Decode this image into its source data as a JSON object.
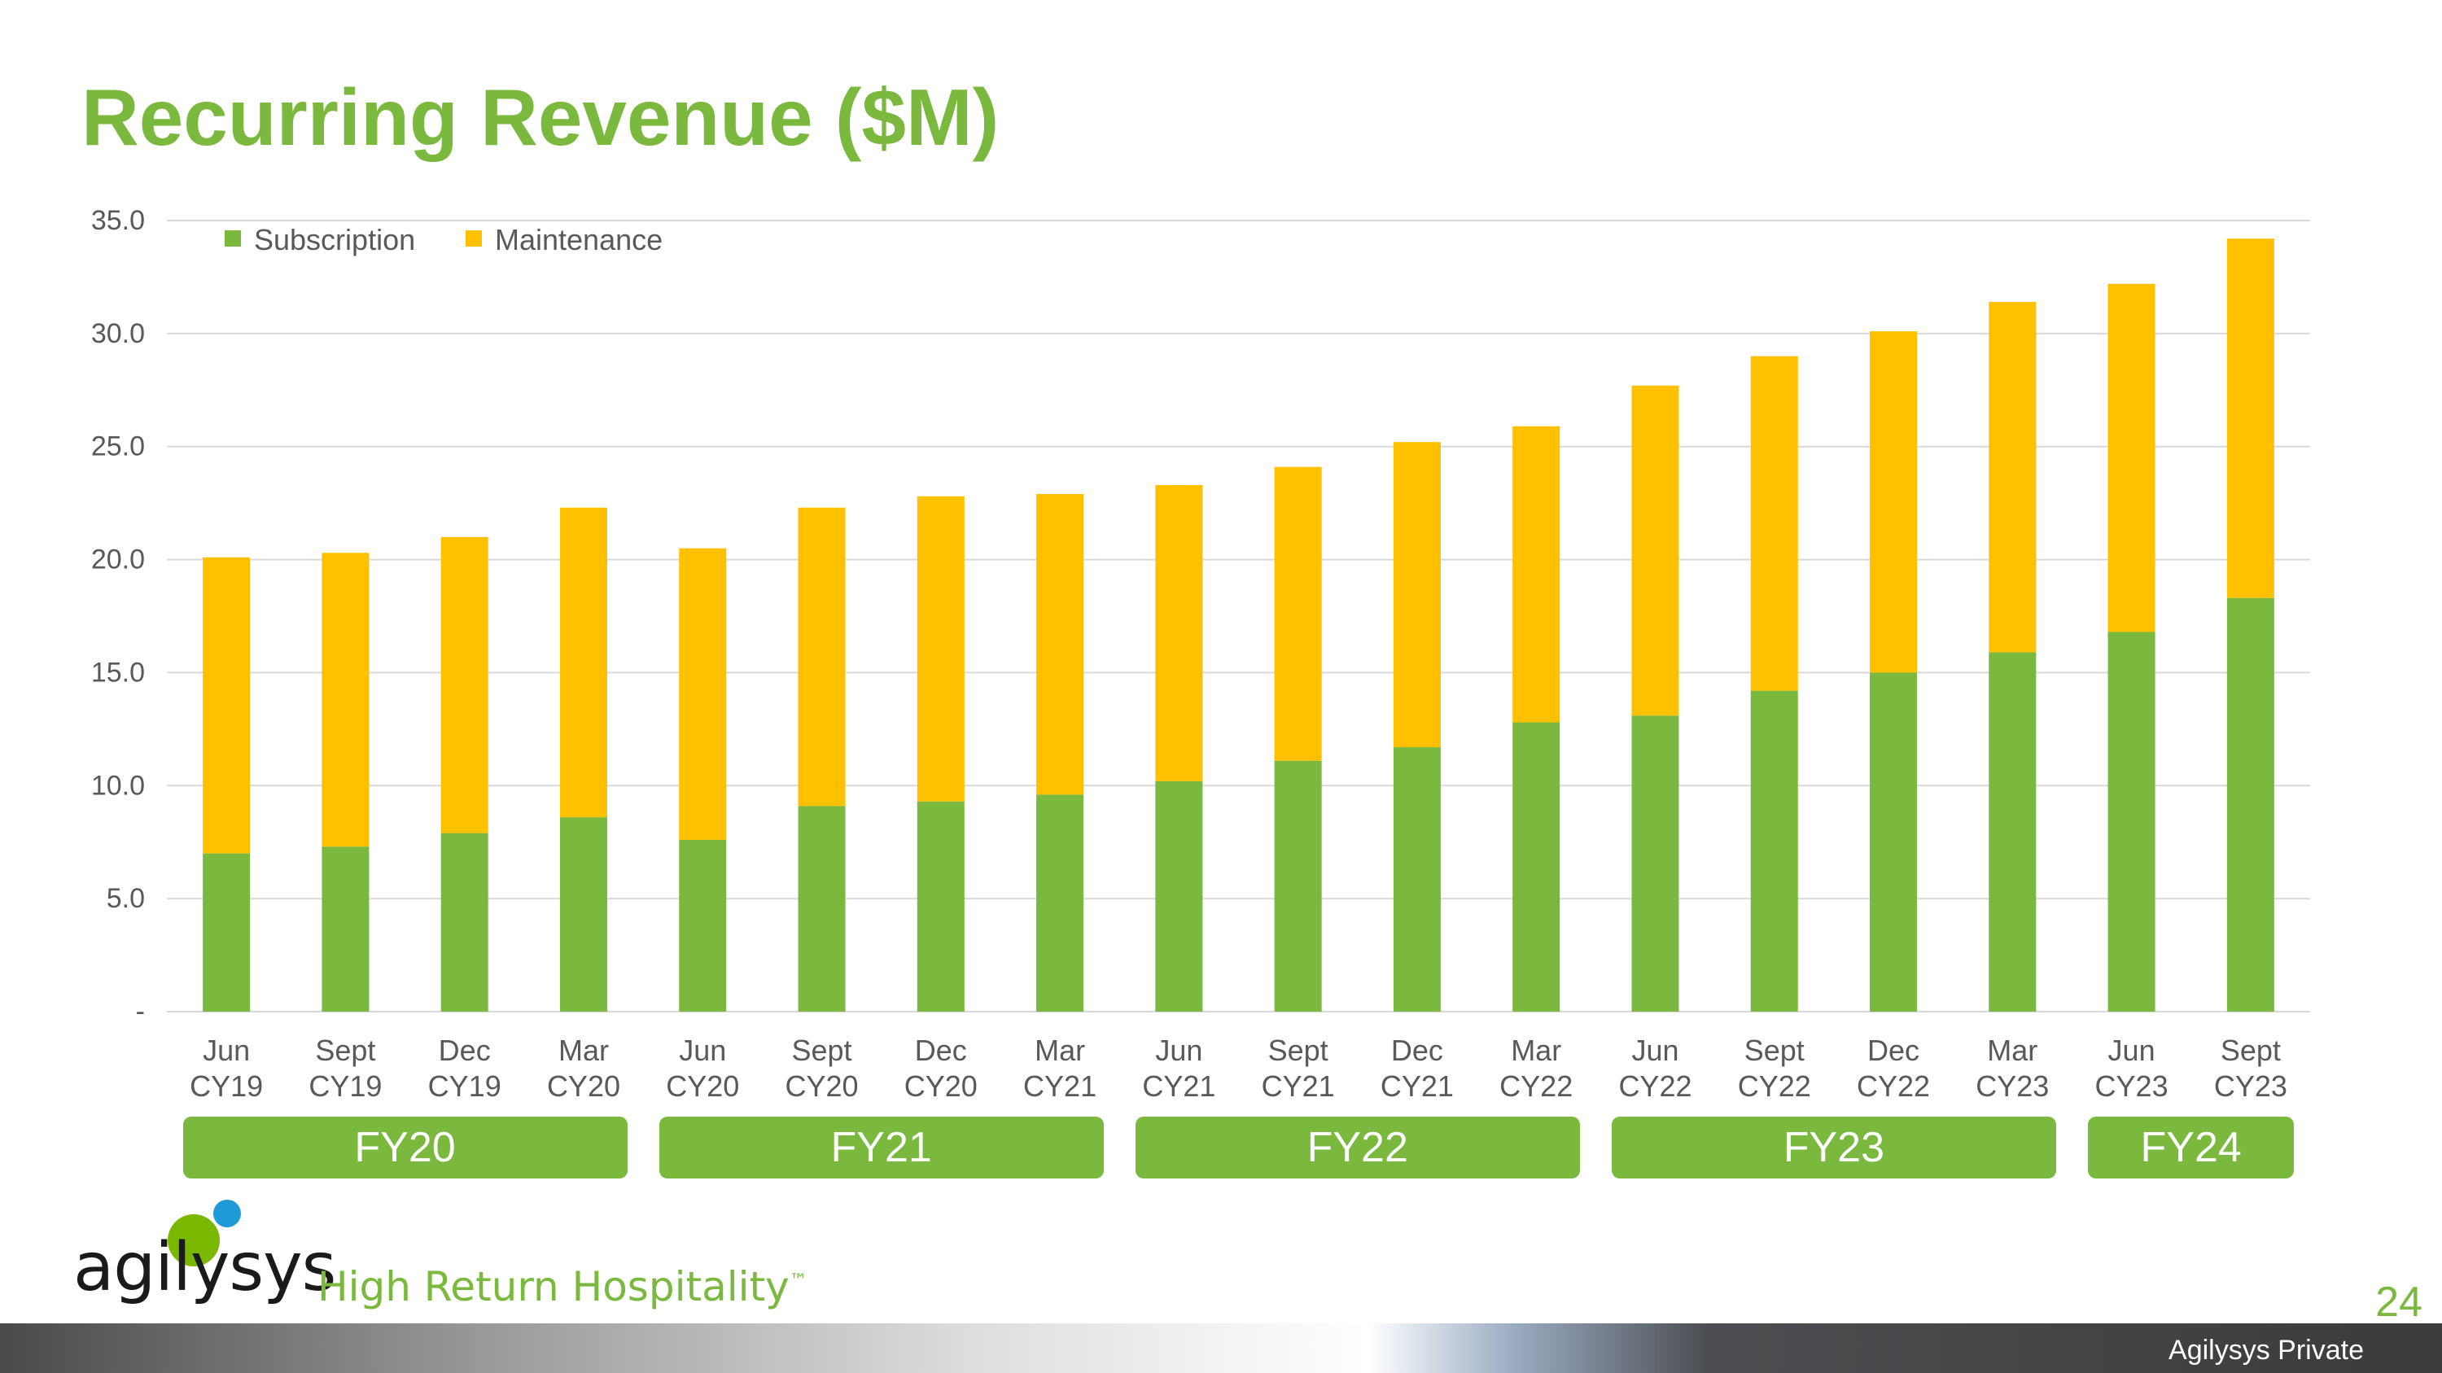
{
  "title": "Recurring Revenue ($M)",
  "chart_data": {
    "type": "bar",
    "stacked": true,
    "title": "Recurring Revenue ($M)",
    "categories": [
      [
        "Jun",
        "CY19"
      ],
      [
        "Sept",
        "CY19"
      ],
      [
        "Dec",
        "CY19"
      ],
      [
        "Mar",
        "CY20"
      ],
      [
        "Jun",
        "CY20"
      ],
      [
        "Sept",
        "CY20"
      ],
      [
        "Dec",
        "CY20"
      ],
      [
        "Mar",
        "CY21"
      ],
      [
        "Jun",
        "CY21"
      ],
      [
        "Sept",
        "CY21"
      ],
      [
        "Dec",
        "CY21"
      ],
      [
        "Mar",
        "CY22"
      ],
      [
        "Jun",
        "CY22"
      ],
      [
        "Sept",
        "CY22"
      ],
      [
        "Dec",
        "CY22"
      ],
      [
        "Mar",
        "CY23"
      ],
      [
        "Jun",
        "CY23"
      ],
      [
        "Sept",
        "CY23"
      ]
    ],
    "series": [
      {
        "name": "Subscription",
        "color": "#7ab83e",
        "values": [
          7.0,
          7.3,
          7.9,
          8.6,
          7.6,
          9.1,
          9.3,
          9.6,
          10.2,
          11.1,
          11.7,
          12.8,
          13.1,
          14.2,
          15.0,
          15.9,
          16.8,
          18.3
        ]
      },
      {
        "name": "Maintenance",
        "color": "#ffc000",
        "values": [
          13.1,
          13.0,
          13.1,
          13.7,
          12.9,
          13.2,
          13.5,
          13.3,
          13.1,
          13.0,
          13.5,
          13.1,
          14.6,
          14.8,
          15.1,
          15.5,
          15.4,
          15.9
        ]
      }
    ],
    "ylim": [
      0,
      35
    ],
    "yticks": [
      "-",
      "5.0",
      "10.0",
      "15.0",
      "20.0",
      "25.0",
      "30.0",
      "35.0"
    ],
    "grid": true,
    "legend_position": "top-left",
    "fiscal_years": [
      {
        "label": "FY20",
        "span": 4
      },
      {
        "label": "FY21",
        "span": 4
      },
      {
        "label": "FY22",
        "span": 4
      },
      {
        "label": "FY23",
        "span": 4
      },
      {
        "label": "FY24",
        "span": 2
      }
    ]
  },
  "branding": {
    "logo_text": "agilysys",
    "tagline": "High Return Hospitality",
    "trademark": "™"
  },
  "footer": {
    "page_number": "24",
    "label": "Agilysys Private"
  }
}
